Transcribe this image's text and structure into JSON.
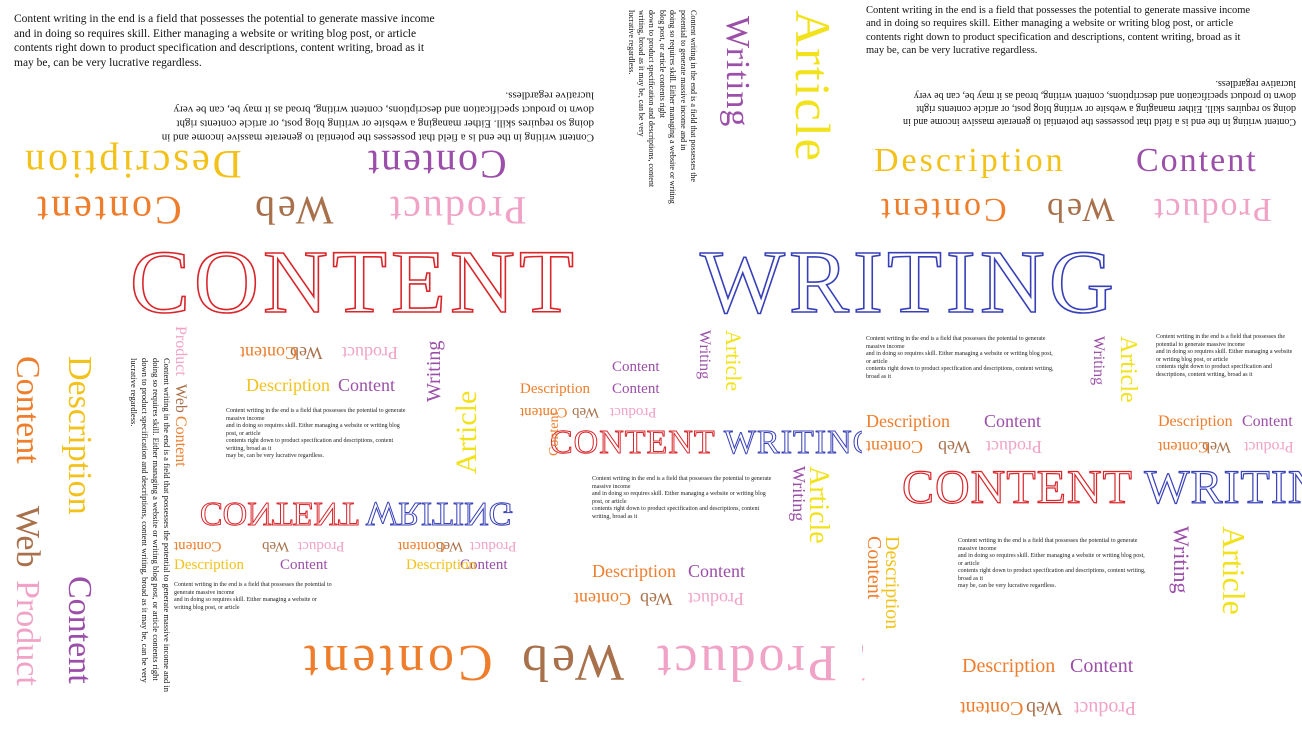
{
  "colors": {
    "red": "#d9262b",
    "blue": "#3740b8",
    "yellow": "#f2d21b",
    "orange": "#ee7d2c",
    "purple": "#9b4fa8",
    "brown": "#a8714b",
    "pink": "#f0a3c6",
    "olive": "#c9b64a"
  },
  "headline": {
    "left": "CONTENT",
    "right": "WRITING"
  },
  "words": {
    "article": "Article",
    "writing": "Writing",
    "content": "Content",
    "description": "Description",
    "product": "Product",
    "web": "Web",
    "content_writing": "CONTENT WRITING"
  },
  "paragraph": {
    "line1": "Content writing in the end is a field that possesses the potential to generate massive income",
    "line2": "and in doing so requires skill. Either managing a website or writing blog post, or article",
    "line3": "contents right down to product specification and descriptions, content writing, broad as it",
    "line4": "may be, can be very lucrative regardless.",
    "flipped_line1": "Content writing in the end is a field that possesses the potential to generate massive income and in",
    "flipped_line2": "doing so requires skill. Either managing a website or writing blog post, or article contents right",
    "flipped_line3": "down to product specification and descriptions, content writing, broad as it may be, can be very",
    "flipped_line4": "lucrative regardless."
  },
  "right_paragraph": {
    "line1": "Content writing in the end is a field that possesses the potential to generate massive income",
    "line2": "and in doing so requires skill. Either managing a website or writing blog post, or article",
    "line3": "contents right down to product specification and descriptions, content writing, broad as it",
    "line4": "may be, can be very lucrative regardless."
  }
}
